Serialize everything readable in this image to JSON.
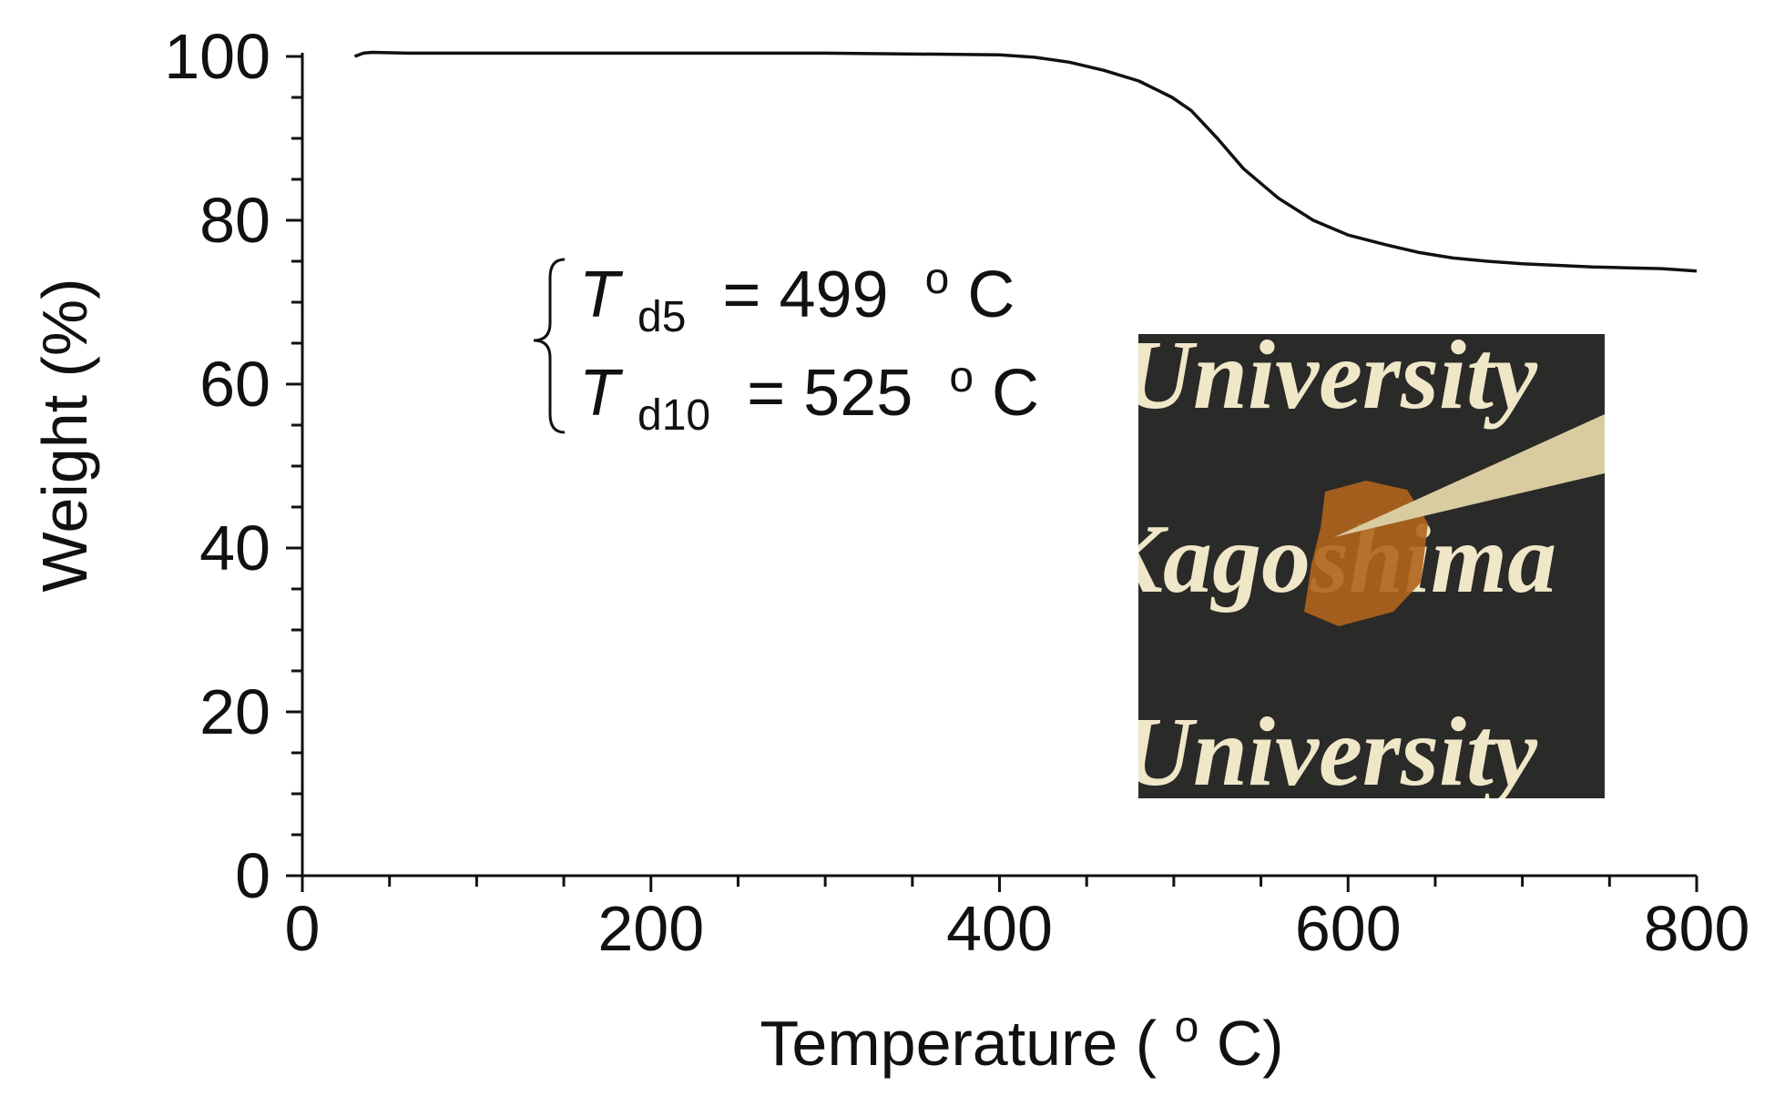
{
  "chart_data": {
    "type": "line",
    "title": "",
    "xlabel": "Temperature (",
    "xlabel_sup": "o",
    "xlabel_end": "C)",
    "ylabel": "Weight (%)",
    "xlim": [
      0,
      800
    ],
    "ylim": [
      0,
      100
    ],
    "xticks": [
      0,
      200,
      400,
      600,
      800
    ],
    "yticks": [
      0,
      20,
      40,
      60,
      80,
      100
    ],
    "x_minor_step": 50,
    "y_minor_step": 5,
    "grid": false,
    "series": [
      {
        "color": "#111111",
        "x": [
          30,
          35,
          40,
          60,
          100,
          200,
          300,
          400,
          420,
          440,
          460,
          480,
          499,
          510,
          525,
          540,
          560,
          580,
          600,
          620,
          640,
          660,
          680,
          700,
          720,
          740,
          760,
          780,
          800
        ],
        "y": [
          100,
          100.4,
          100.5,
          100.4,
          100.4,
          100.4,
          100.4,
          100.2,
          99.9,
          99.3,
          98.3,
          97.0,
          95.0,
          93.4,
          90.0,
          86.3,
          82.7,
          80.0,
          78.2,
          77.1,
          76.1,
          75.4,
          75.0,
          74.7,
          74.5,
          74.3,
          74.2,
          74.1,
          73.8
        ]
      }
    ],
    "annotations": {
      "td5": {
        "symbol": "T",
        "sub": "d5",
        "text": " = 499 ",
        "sup": "o",
        "unit": "C"
      },
      "td10": {
        "symbol": "T",
        "sub": "d10",
        "text": " = 525 ",
        "sup": "o",
        "unit": "C"
      }
    },
    "inset_photo": {
      "colors": {
        "background": "#2a2a28",
        "text": "#efe7c8",
        "sample": "#b0641c",
        "tweezers": "#d8cca0"
      }
    }
  }
}
